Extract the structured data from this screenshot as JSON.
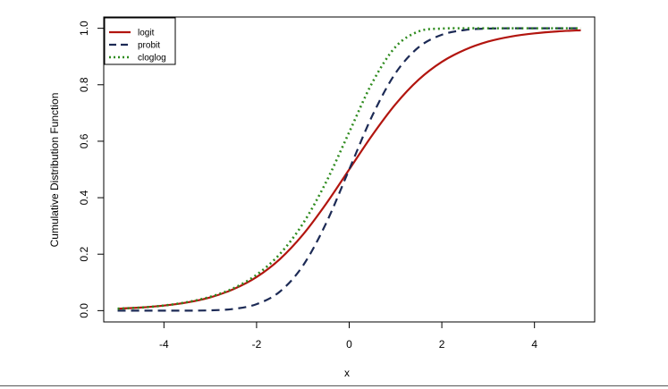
{
  "chart_data": {
    "type": "line",
    "title": "",
    "xlabel": "x",
    "ylabel": "Cumulative Distribution Function",
    "xlim": [
      -5.3,
      5.3
    ],
    "ylim": [
      -0.04,
      1.04
    ],
    "x_ticks": [
      -4,
      -2,
      0,
      2,
      4
    ],
    "x_tick_labels": [
      "-4",
      "-2",
      "0",
      "2",
      "4"
    ],
    "y_ticks": [
      0.0,
      0.2,
      0.4,
      0.6,
      0.8,
      1.0
    ],
    "y_tick_labels": [
      "0.0",
      "0.2",
      "0.4",
      "0.6",
      "0.8",
      "1.0"
    ],
    "grid": false,
    "legend_position": "top-left",
    "x": [
      -5,
      -4.5,
      -4,
      -3.5,
      -3,
      -2.5,
      -2,
      -1.5,
      -1,
      -0.5,
      0,
      0.5,
      1,
      1.5,
      2,
      2.5,
      3,
      3.5,
      4,
      4.5,
      5
    ],
    "series": [
      {
        "name": "logit",
        "color": "#b2150f",
        "style": "solid",
        "values": [
          0.007,
          0.011,
          0.018,
          0.029,
          0.047,
          0.076,
          0.119,
          0.182,
          0.269,
          0.378,
          0.5,
          0.622,
          0.731,
          0.818,
          0.881,
          0.924,
          0.953,
          0.971,
          0.982,
          0.989,
          0.993
        ]
      },
      {
        "name": "probit",
        "color": "#1c2a55",
        "style": "dashed",
        "values": [
          0.0,
          0.0,
          0.0,
          0.0,
          0.001,
          0.006,
          0.023,
          0.067,
          0.159,
          0.309,
          0.5,
          0.691,
          0.841,
          0.933,
          0.977,
          0.994,
          0.999,
          1.0,
          1.0,
          1.0,
          1.0
        ]
      },
      {
        "name": "cloglog",
        "color": "#2e8b1e",
        "style": "dotted",
        "values": [
          0.007,
          0.011,
          0.018,
          0.03,
          0.049,
          0.079,
          0.127,
          0.2,
          0.308,
          0.455,
          0.632,
          0.808,
          0.934,
          0.989,
          0.999,
          1.0,
          1.0,
          1.0,
          1.0,
          1.0,
          1.0
        ]
      }
    ]
  }
}
